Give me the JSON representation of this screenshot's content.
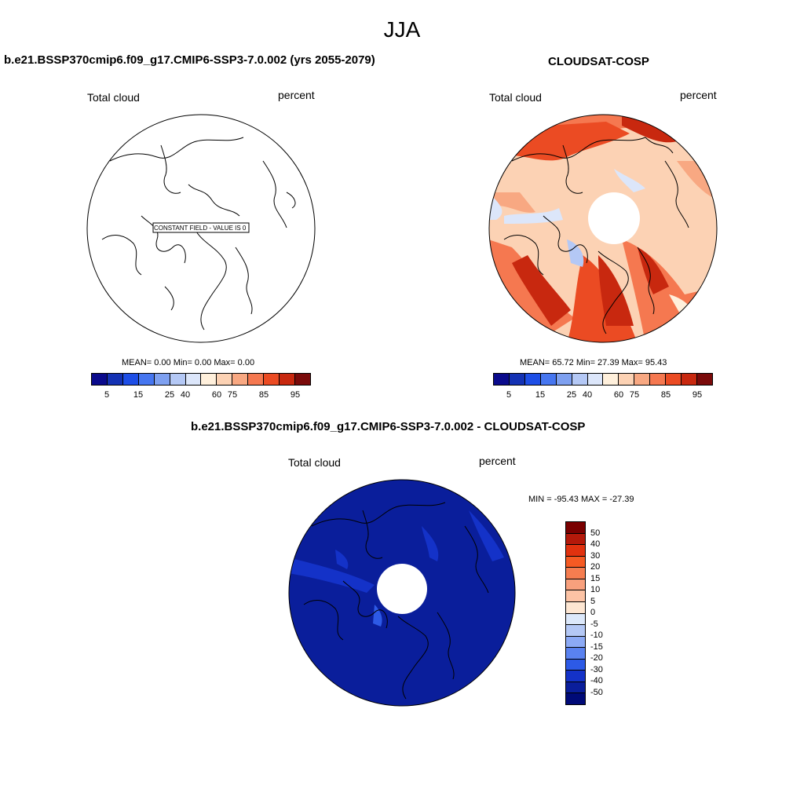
{
  "figure": {
    "title": "JJA"
  },
  "panels": {
    "test": {
      "title": "b.e21.BSSP370cmip6.f09_g17.CMIP6-SSP3-7.0.002 (yrs 2055-2079)",
      "variable": "Total cloud",
      "units": "percent",
      "annotation": "CONSTANT FIELD - VALUE IS 0",
      "stats": "MEAN=   0.00  Min=   0.00  Max=   0.00"
    },
    "ref": {
      "title": "CLOUDSAT-COSP",
      "variable": "Total cloud",
      "units": "percent",
      "stats": "MEAN=  65.72  Min=  27.39  Max=  95.43"
    },
    "diff": {
      "title": "b.e21.BSSP370cmip6.f09_g17.CMIP6-SSP3-7.0.002 - CLOUDSAT-COSP",
      "variable": "Total cloud",
      "units": "percent",
      "stats": "MIN = -95.43 MAX = -27.39"
    }
  },
  "colorbar_main": {
    "tick_labels": [
      "5",
      "15",
      "25",
      "40",
      "60",
      "75",
      "85",
      "95"
    ],
    "colors": [
      "#0a0a8c",
      "#1432b4",
      "#1e4ee6",
      "#4676f0",
      "#7ea0f0",
      "#b4c8f5",
      "#dce6fa",
      "#fff0dc",
      "#fcd2b4",
      "#f8a882",
      "#f57850",
      "#eb4b23",
      "#c8280f",
      "#7a0a0a"
    ]
  },
  "colorbar_diff": {
    "tick_labels": [
      "50",
      "40",
      "30",
      "20",
      "15",
      "10",
      "5",
      "0",
      "-5",
      "-10",
      "-15",
      "-20",
      "-30",
      "-40",
      "-50"
    ],
    "colors": [
      "#7a0000",
      "#b4190a",
      "#e1320f",
      "#f55a23",
      "#f57d50",
      "#f8a07d",
      "#fcc3a5",
      "#fde6d2",
      "#dce8fa",
      "#b4c8f5",
      "#8caaf5",
      "#5a82f0",
      "#2d5ae6",
      "#1432c8",
      "#0a1e9b",
      "#000a78"
    ]
  },
  "chart_data": [
    {
      "type": "heatmap",
      "title": "b.e21.BSSP370cmip6.f09_g17.CMIP6-SSP3-7.0.002 (yrs 2055-2079)",
      "variable": "Total cloud",
      "units": "percent",
      "projection": "north polar stereographic",
      "mean": 0.0,
      "min": 0.0,
      "max": 0.0,
      "note": "CONSTANT FIELD - VALUE IS 0"
    },
    {
      "type": "heatmap",
      "title": "CLOUDSAT-COSP",
      "variable": "Total cloud",
      "units": "percent",
      "projection": "north polar stereographic",
      "mean": 65.72,
      "min": 27.39,
      "max": 95.43,
      "levels": [
        5,
        10,
        15,
        20,
        25,
        30,
        40,
        50,
        60,
        70,
        75,
        80,
        85,
        90,
        95
      ]
    },
    {
      "type": "heatmap",
      "title": "b.e21.BSSP370cmip6.f09_g17.CMIP6-SSP3-7.0.002 - CLOUDSAT-COSP",
      "variable": "Total cloud",
      "units": "percent",
      "projection": "north polar stereographic",
      "min": -95.43,
      "max": -27.39,
      "levels": [
        -50,
        -40,
        -30,
        -20,
        -15,
        -10,
        -5,
        0,
        5,
        10,
        15,
        20,
        30,
        40,
        50
      ]
    }
  ]
}
